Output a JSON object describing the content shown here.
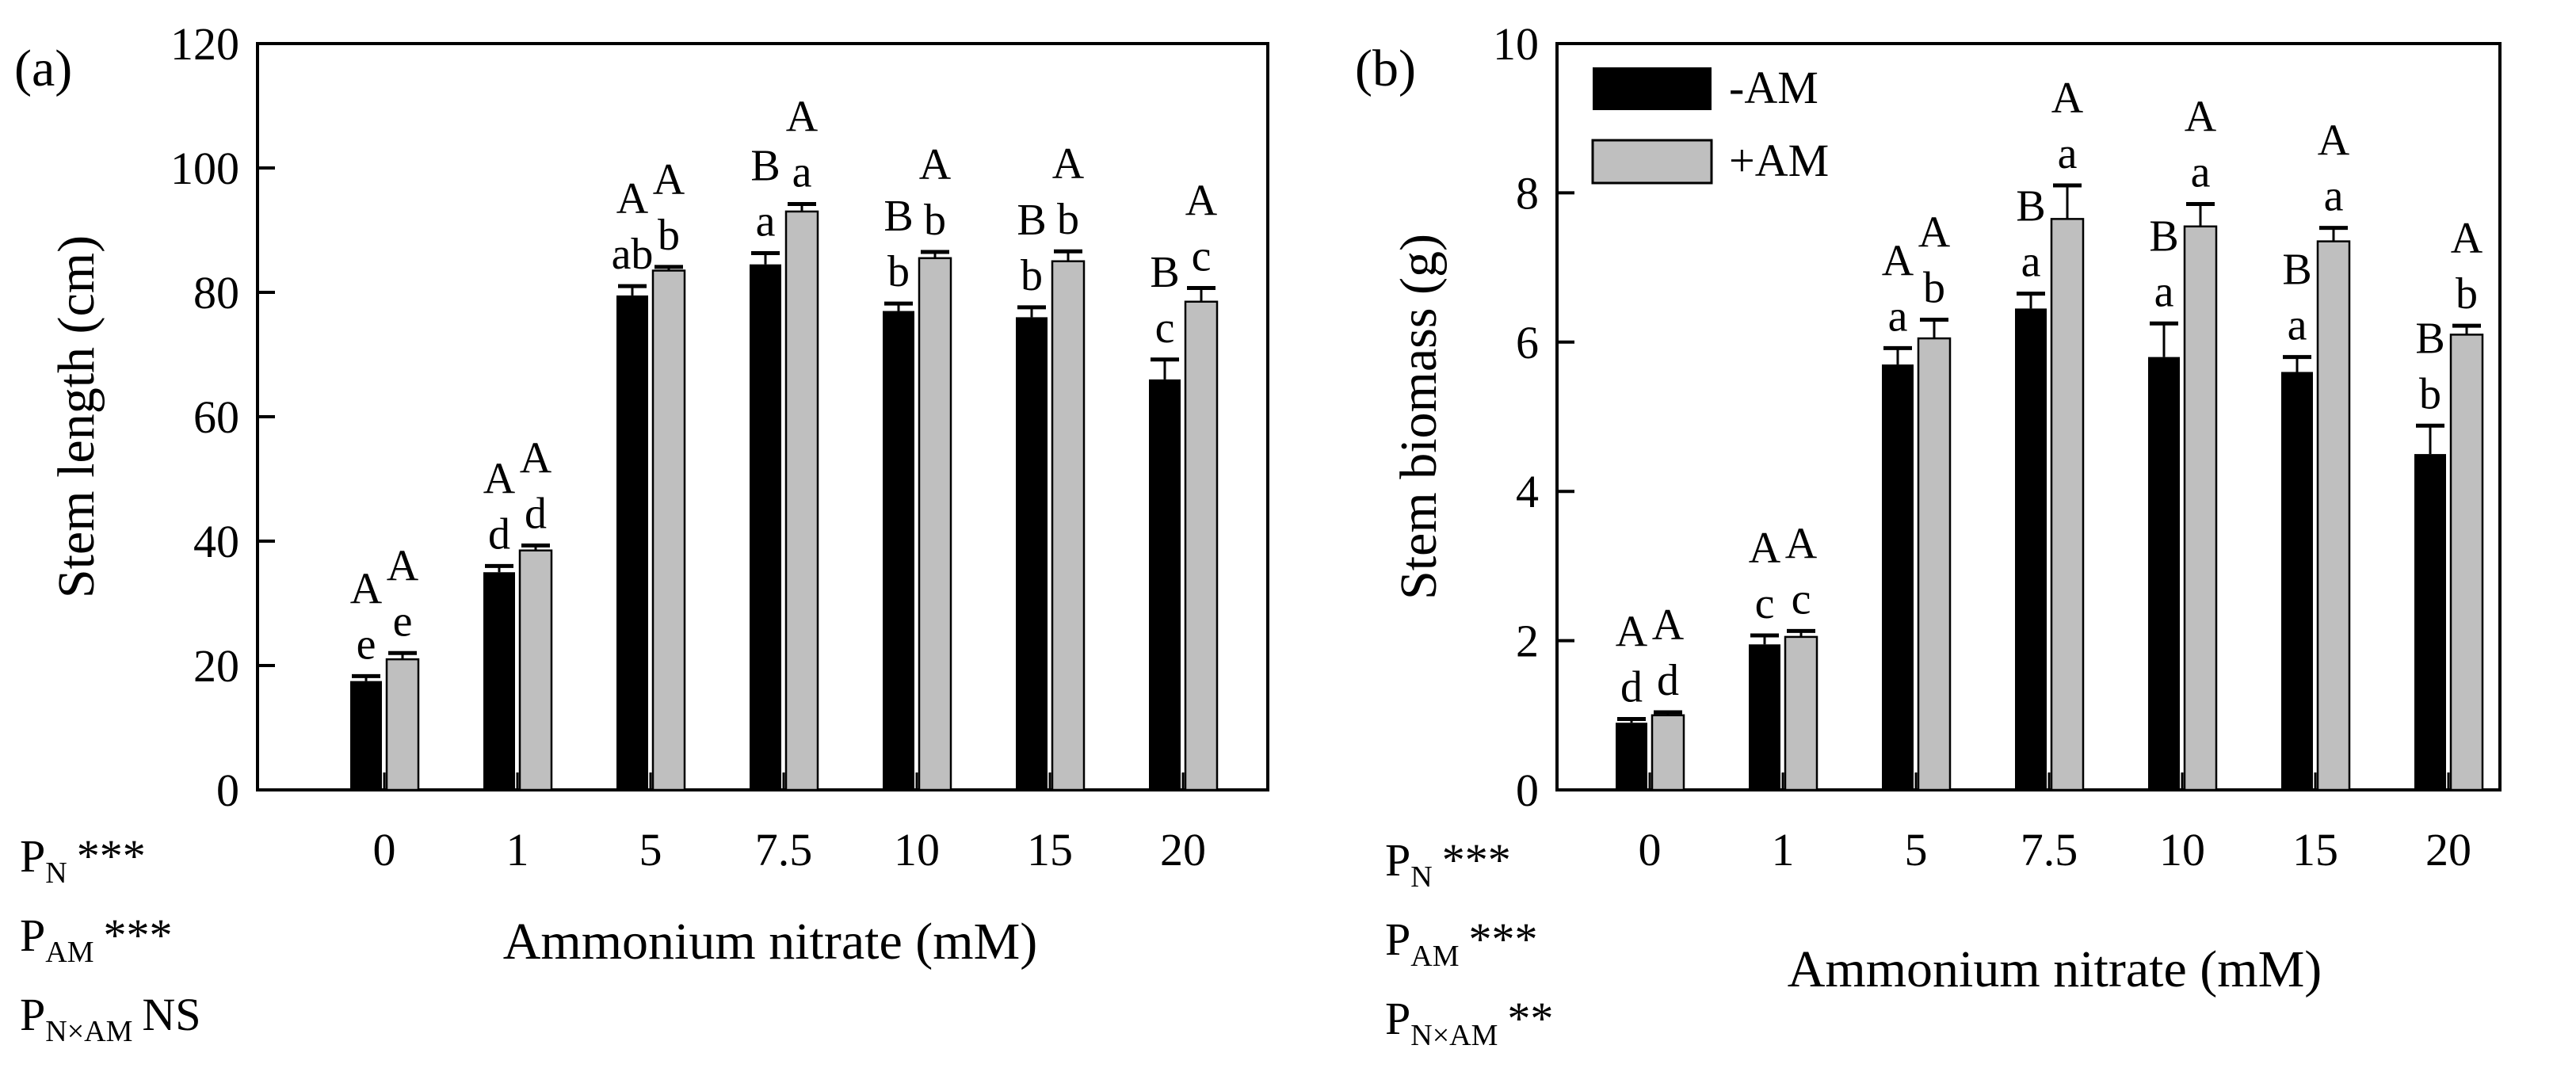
{
  "chart_data": [
    {
      "type": "bar",
      "panel_label": "(a)",
      "title": "",
      "xlabel": "Ammonium nitrate (mM)",
      "ylabel": "Stem length (cm)",
      "ylim": [
        0,
        120
      ],
      "yticks": [
        "0",
        "20",
        "40",
        "60",
        "80",
        "100",
        "120"
      ],
      "categories": [
        "0",
        "1",
        "5",
        "7.5",
        "10",
        "15",
        "20"
      ],
      "grid": false,
      "series": [
        {
          "name": "-AM",
          "color": "#000000",
          "values": [
            17.5,
            35,
            79.5,
            84.5,
            77,
            76,
            66
          ],
          "errors": [
            0.8,
            1.0,
            1.5,
            1.8,
            1.2,
            1.6,
            3.2
          ],
          "lower_letters": [
            "e",
            "d",
            "ab",
            "a",
            "b",
            "b",
            "c"
          ],
          "upper_letters": [
            "A",
            "A",
            "A",
            "B",
            "B",
            "B",
            "B"
          ]
        },
        {
          "name": "+AM",
          "color": "#bfbfbf",
          "values": [
            21,
            38.5,
            83.5,
            93,
            85.5,
            85,
            78.5
          ],
          "errors": [
            1.0,
            0.8,
            0.6,
            1.2,
            1.0,
            1.6,
            2.2
          ],
          "lower_letters": [
            "e",
            "d",
            "b",
            "a",
            "b",
            "b",
            "c"
          ],
          "upper_letters": [
            "A",
            "A",
            "A",
            "A",
            "A",
            "A",
            "A"
          ]
        }
      ],
      "significance": [
        {
          "main": "P",
          "sub": "N",
          "value": "***"
        },
        {
          "main": "P",
          "sub": "AM",
          "value": "***"
        },
        {
          "main": "P",
          "sub": "N×AM",
          "value": "NS"
        }
      ]
    },
    {
      "type": "bar",
      "panel_label": "(b)",
      "title": "",
      "xlabel": "Ammonium nitrate (mM)",
      "ylabel": "Stem biomass (g)",
      "ylim": [
        0,
        10
      ],
      "yticks": [
        "0",
        "2",
        "4",
        "6",
        "8",
        "10"
      ],
      "categories": [
        "0",
        "1",
        "5",
        "7.5",
        "10",
        "15",
        "20"
      ],
      "grid": false,
      "legend_position": "top-left",
      "series": [
        {
          "name": "-AM",
          "color": "#000000",
          "values": [
            0.9,
            1.95,
            5.7,
            6.45,
            5.8,
            5.6,
            4.5
          ],
          "errors": [
            0.05,
            0.12,
            0.22,
            0.2,
            0.45,
            0.2,
            0.38
          ],
          "lower_letters": [
            "d",
            "c",
            "a",
            "a",
            "a",
            "a",
            "b"
          ],
          "upper_letters": [
            "A",
            "A",
            "A",
            "B",
            "B",
            "B",
            "B"
          ]
        },
        {
          "name": "+AM",
          "color": "#bfbfbf",
          "values": [
            1.0,
            2.05,
            6.05,
            7.65,
            7.55,
            7.35,
            6.1
          ],
          "errors": [
            0.04,
            0.08,
            0.25,
            0.45,
            0.3,
            0.18,
            0.12
          ],
          "lower_letters": [
            "d",
            "c",
            "b",
            "a",
            "a",
            "a",
            "b"
          ],
          "upper_letters": [
            "A",
            "A",
            "A",
            "A",
            "A",
            "A",
            "A"
          ]
        }
      ],
      "significance": [
        {
          "main": "P",
          "sub": "N",
          "value": "***"
        },
        {
          "main": "P",
          "sub": "AM",
          "value": "***"
        },
        {
          "main": "P",
          "sub": "N×AM",
          "value": "**"
        }
      ]
    }
  ]
}
